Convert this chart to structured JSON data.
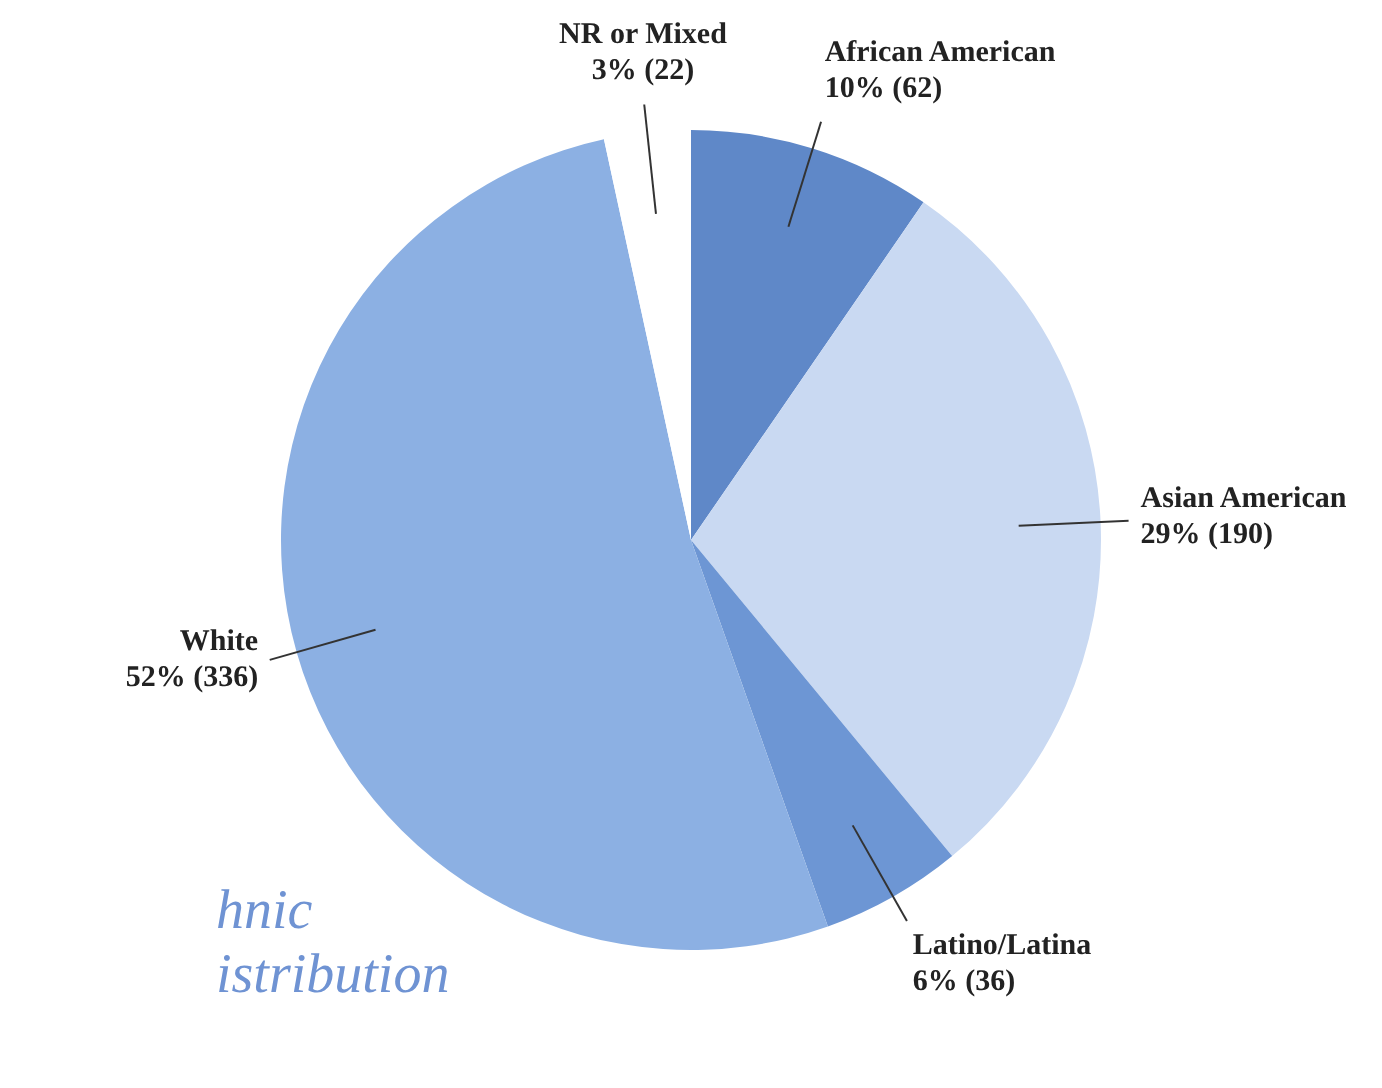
{
  "chart_data": {
    "type": "pie",
    "categories": [
      "African American",
      "Asian American",
      "Latino/Latina",
      "White",
      "NR or Mixed"
    ],
    "values": [
      62,
      190,
      36,
      336,
      22
    ],
    "value_labels": [
      "10% (62)",
      "29% (190)",
      "6% (36)",
      "52% (336)",
      "3% (22)"
    ],
    "colors": [
      "#5f88c8",
      "#c9d9f2",
      "#6d96d4",
      "#8cb0e3",
      "#ffffff"
    ],
    "legend": false,
    "annotations": [
      "hnic",
      "istribution"
    ]
  }
}
